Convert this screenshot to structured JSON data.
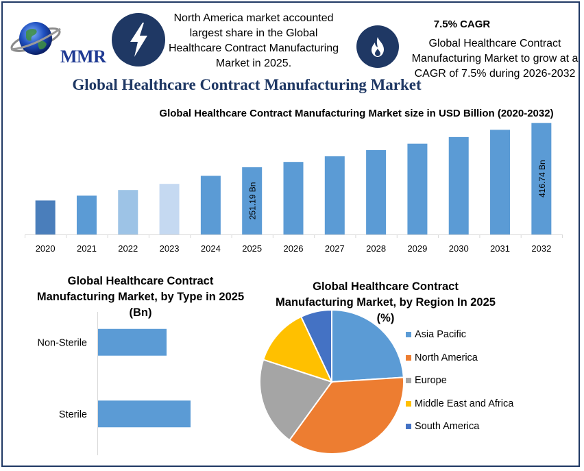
{
  "header": {
    "logo_text": "MMR",
    "info1_text": "North America market accounted largest share in the Global Healthcare Contract Manufacturing Market in 2025.",
    "info2_title": "7.5% CAGR",
    "info2_text": "Global Healthcare Contract Manufacturing Market to grow at a CAGR of 7.5% during 2026-2032",
    "icon1": "lightning-icon",
    "icon2": "flame-icon"
  },
  "main_title": "Global Healthcare Contract Manufacturing Market",
  "chart_data": [
    {
      "type": "bar",
      "title": "Global Healthcare Contract Manufacturing Market size in USD Billion (2020-2032)",
      "categories": [
        "2020",
        "2021",
        "2022",
        "2023",
        "2024",
        "2025",
        "2026",
        "2027",
        "2028",
        "2029",
        "2030",
        "2031",
        "2032"
      ],
      "values": [
        127,
        145,
        166,
        189,
        219,
        251.19,
        271,
        292,
        315,
        339,
        364,
        391,
        416.74
      ],
      "data_labels": {
        "2025": "251.19 Bn",
        "2032": "416.74 Bn"
      },
      "colors": [
        "#4a7ebb",
        "#5b9bd5",
        "#9dc3e6",
        "#c5d9f1",
        "#5b9bd5",
        "#5b9bd5",
        "#5b9bd5",
        "#5b9bd5",
        "#5b9bd5",
        "#5b9bd5",
        "#5b9bd5",
        "#5b9bd5",
        "#5b9bd5"
      ],
      "ylim": [
        0,
        420
      ],
      "grid": false
    },
    {
      "type": "bar",
      "orientation": "horizontal",
      "title": "Global Healthcare Contract Manufacturing Market, by Type in 2025 (Bn)",
      "categories": [
        "Non-Sterile",
        "Sterile"
      ],
      "values": [
        100,
        135
      ],
      "xlim": [
        0,
        250
      ],
      "color": "#5b9bd5"
    },
    {
      "type": "pie",
      "title": "Global Healthcare Contract Manufacturing Market, by Region In 2025 (%)",
      "labels": [
        "Asia Pacific",
        "North America",
        "Europe",
        "Middle East and Africa",
        "South America"
      ],
      "values": [
        24,
        36,
        20,
        13,
        7
      ],
      "colors": [
        "#5b9bd5",
        "#ed7d31",
        "#a5a5a5",
        "#ffc000",
        "#4472c4"
      ],
      "legend": "right"
    }
  ]
}
